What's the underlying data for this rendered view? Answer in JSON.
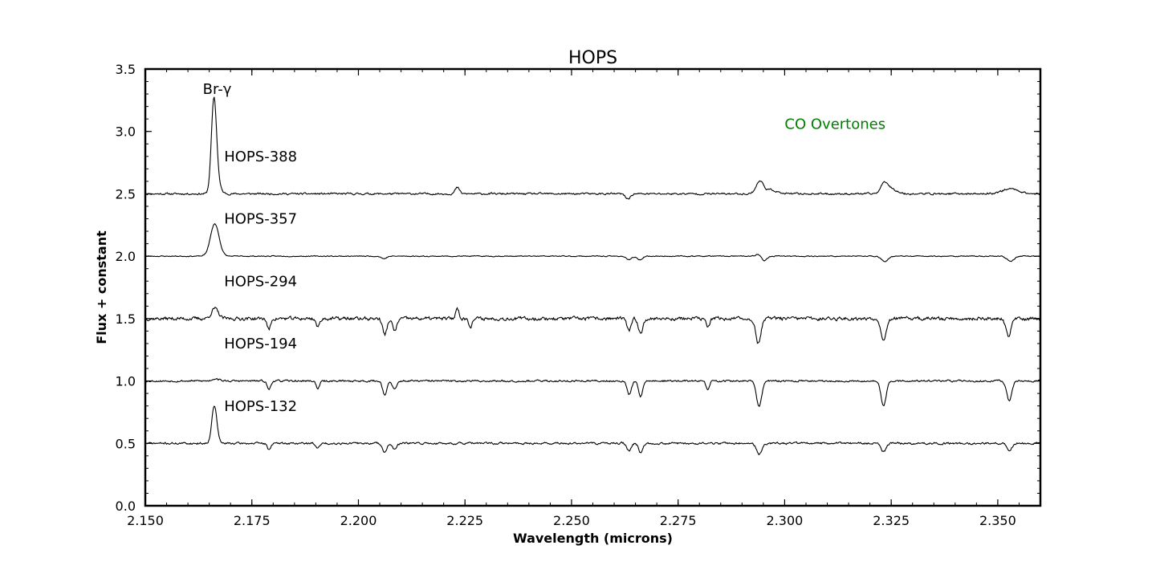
{
  "chart_data": {
    "type": "line",
    "title": "HOPS",
    "xlabel": "Wavelength (microns)",
    "ylabel": "Flux + constant",
    "xlim": [
      2.15,
      2.36
    ],
    "ylim": [
      0.0,
      3.5
    ],
    "xticks": [
      "2.150",
      "2.175",
      "2.200",
      "2.225",
      "2.250",
      "2.275",
      "2.300",
      "2.325",
      "2.350"
    ],
    "yticks": [
      "0.0",
      "0.5",
      "1.0",
      "1.5",
      "2.0",
      "2.5",
      "3.0",
      "3.5"
    ],
    "grid": false,
    "annotations": [
      {
        "text": "Br-γ",
        "x": 2.1635,
        "y": 3.3
      },
      {
        "text": "CO Overtones",
        "x": 2.3,
        "y": 3.02,
        "color": "#008000"
      }
    ],
    "series": [
      {
        "name": "HOPS-388",
        "offset": 2.5,
        "label": {
          "text": "HOPS-388",
          "x": 2.1685,
          "y": 2.76
        },
        "features": [
          {
            "x": 2.1661,
            "a": 0.72,
            "w": 0.0006
          },
          {
            "x": 2.1668,
            "a": 0.08,
            "w": 0.0008
          },
          {
            "x": 2.2232,
            "a": 0.05,
            "w": 0.0005
          },
          {
            "x": 2.2632,
            "a": -0.04,
            "w": 0.0006
          },
          {
            "x": 2.2942,
            "a": 0.1,
            "w": 0.0009
          },
          {
            "x": 2.297,
            "a": 0.03,
            "w": 0.0012
          },
          {
            "x": 2.3235,
            "a": 0.09,
            "w": 0.0009
          },
          {
            "x": 2.3255,
            "a": 0.03,
            "w": 0.0012
          },
          {
            "x": 2.353,
            "a": 0.04,
            "w": 0.002
          }
        ],
        "noise": 0.012,
        "seed": 11
      },
      {
        "name": "HOPS-357",
        "offset": 2.0,
        "label": {
          "text": "HOPS-357",
          "x": 2.1685,
          "y": 2.26
        },
        "features": [
          {
            "x": 2.1663,
            "a": 0.26,
            "w": 0.001
          },
          {
            "x": 2.206,
            "a": -0.02,
            "w": 0.0006
          },
          {
            "x": 2.2635,
            "a": -0.03,
            "w": 0.0006
          },
          {
            "x": 2.266,
            "a": -0.03,
            "w": 0.0006
          },
          {
            "x": 2.294,
            "a": 0.03,
            "w": 0.0006
          },
          {
            "x": 2.295,
            "a": -0.04,
            "w": 0.0008
          },
          {
            "x": 2.3235,
            "a": -0.04,
            "w": 0.0008
          },
          {
            "x": 2.353,
            "a": -0.04,
            "w": 0.0008
          }
        ],
        "noise": 0.006,
        "seed": 23
      },
      {
        "name": "HOPS-294",
        "offset": 1.5,
        "label": {
          "text": "HOPS-294",
          "x": 2.1685,
          "y": 1.76
        },
        "features": [
          {
            "x": 2.1663,
            "a": 0.08,
            "w": 0.0008
          },
          {
            "x": 2.179,
            "a": -0.09,
            "w": 0.0004
          },
          {
            "x": 2.1905,
            "a": -0.07,
            "w": 0.0004
          },
          {
            "x": 2.2062,
            "a": -0.13,
            "w": 0.0005
          },
          {
            "x": 2.2085,
            "a": -0.1,
            "w": 0.0005
          },
          {
            "x": 2.2232,
            "a": 0.08,
            "w": 0.0004
          },
          {
            "x": 2.2263,
            "a": -0.06,
            "w": 0.0004
          },
          {
            "x": 2.2635,
            "a": -0.1,
            "w": 0.0005
          },
          {
            "x": 2.2662,
            "a": -0.12,
            "w": 0.0005
          },
          {
            "x": 2.282,
            "a": -0.07,
            "w": 0.0004
          },
          {
            "x": 2.2938,
            "a": -0.2,
            "w": 0.0006
          },
          {
            "x": 2.3232,
            "a": -0.17,
            "w": 0.0006
          },
          {
            "x": 2.3525,
            "a": -0.14,
            "w": 0.0006
          }
        ],
        "band_heads": [
          2.2935,
          2.3227,
          2.3524
        ],
        "band_depth": 0.07,
        "noise": 0.022,
        "seed": 37
      },
      {
        "name": "HOPS-194",
        "offset": 1.0,
        "label": {
          "text": "HOPS-194",
          "x": 2.1685,
          "y": 1.26
        },
        "features": [
          {
            "x": 2.1665,
            "a": 0.02,
            "w": 0.0008
          },
          {
            "x": 2.179,
            "a": -0.07,
            "w": 0.0004
          },
          {
            "x": 2.1905,
            "a": -0.06,
            "w": 0.0004
          },
          {
            "x": 2.2062,
            "a": -0.11,
            "w": 0.0005
          },
          {
            "x": 2.2085,
            "a": -0.07,
            "w": 0.0005
          },
          {
            "x": 2.2635,
            "a": -0.11,
            "w": 0.0005
          },
          {
            "x": 2.2662,
            "a": -0.12,
            "w": 0.0005
          },
          {
            "x": 2.282,
            "a": -0.07,
            "w": 0.0004
          },
          {
            "x": 2.294,
            "a": -0.21,
            "w": 0.0006
          },
          {
            "x": 2.3232,
            "a": -0.2,
            "w": 0.0006
          },
          {
            "x": 2.3527,
            "a": -0.16,
            "w": 0.0006
          }
        ],
        "band_heads": [
          2.2937,
          2.3229,
          2.3526
        ],
        "band_depth": 0.1,
        "noise": 0.012,
        "seed": 53
      },
      {
        "name": "HOPS-132",
        "offset": 0.5,
        "label": {
          "text": "HOPS-132",
          "x": 2.1685,
          "y": 0.76
        },
        "features": [
          {
            "x": 2.1662,
            "a": 0.3,
            "w": 0.0006
          },
          {
            "x": 2.179,
            "a": -0.05,
            "w": 0.0004
          },
          {
            "x": 2.1905,
            "a": -0.04,
            "w": 0.0004
          },
          {
            "x": 2.2062,
            "a": -0.07,
            "w": 0.0005
          },
          {
            "x": 2.2085,
            "a": -0.05,
            "w": 0.0005
          },
          {
            "x": 2.2635,
            "a": -0.06,
            "w": 0.0005
          },
          {
            "x": 2.2662,
            "a": -0.07,
            "w": 0.0005
          },
          {
            "x": 2.294,
            "a": -0.09,
            "w": 0.0006
          },
          {
            "x": 2.3232,
            "a": -0.07,
            "w": 0.0006
          },
          {
            "x": 2.3527,
            "a": -0.05,
            "w": 0.0006
          }
        ],
        "band_heads": [
          2.2938,
          2.323,
          2.3525
        ],
        "band_depth": 0.04,
        "noise": 0.013,
        "seed": 71
      }
    ]
  }
}
